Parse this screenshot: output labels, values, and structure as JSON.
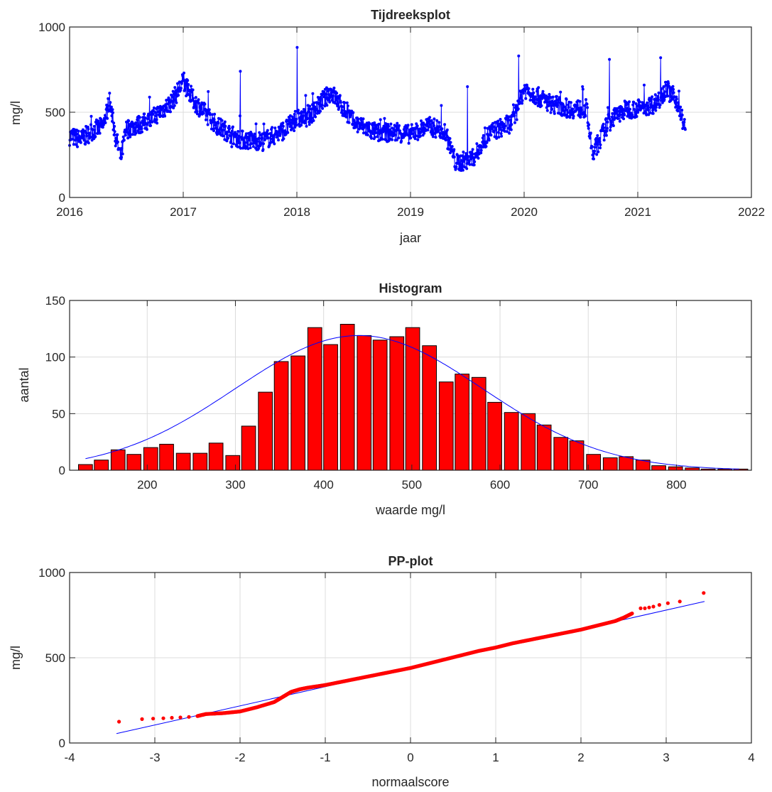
{
  "chart_data": [
    {
      "type": "line",
      "title": "Tijdreeksplot",
      "xlabel": "jaar",
      "ylabel": "mg/l",
      "xlim": [
        2016,
        2022
      ],
      "ylim": [
        0,
        1000
      ],
      "xticks": [
        "2016",
        "2017",
        "2018",
        "2019",
        "2020",
        "2021",
        "2022"
      ],
      "yticks": [
        "0",
        "500",
        "1000"
      ],
      "grid": true,
      "line_color": "#0000ff",
      "x": [
        2016.0,
        2016.1,
        2016.2,
        2016.3,
        2016.35,
        2016.4,
        2016.45,
        2016.5,
        2016.7,
        2016.9,
        2017.0,
        2017.1,
        2017.3,
        2017.5,
        2017.7,
        2017.9,
        2018.0,
        2018.1,
        2018.3,
        2018.5,
        2018.7,
        2018.9,
        2019.0,
        2019.15,
        2019.3,
        2019.4,
        2019.55,
        2019.7,
        2019.9,
        2020.0,
        2020.2,
        2020.4,
        2020.55,
        2020.6,
        2020.75,
        2020.9,
        2021.0,
        2021.15,
        2021.25,
        2021.35,
        2021.42
      ],
      "y": [
        360,
        340,
        390,
        420,
        570,
        380,
        230,
        400,
        450,
        560,
        680,
        560,
        420,
        340,
        330,
        400,
        460,
        470,
        620,
        440,
        380,
        380,
        370,
        420,
        390,
        200,
        230,
        380,
        440,
        640,
        560,
        520,
        520,
        250,
        450,
        520,
        520,
        550,
        640,
        560,
        390
      ],
      "spike_x": [
        2017.5,
        2018.0,
        2019.5,
        2019.95,
        2020.75,
        2021.2
      ],
      "spike_y": [
        740,
        880,
        650,
        830,
        810,
        820
      ]
    },
    {
      "type": "bar",
      "title": "Histogram",
      "xlabel": "waarde mg/l",
      "ylabel": "aantal",
      "xlim": [
        112,
        885
      ],
      "ylim": [
        0,
        150
      ],
      "xticks": [
        "200",
        "300",
        "400",
        "500",
        "600",
        "700",
        "800"
      ],
      "yticks": [
        "0",
        "50",
        "100",
        "150"
      ],
      "grid": true,
      "bar_color": "#ff0000",
      "curve_color": "#0000ff",
      "bin_centers": [
        130,
        148,
        167,
        185,
        204,
        222,
        241,
        260,
        278,
        297,
        315,
        334,
        352,
        371,
        390,
        408,
        427,
        446,
        464,
        483,
        501,
        520,
        539,
        557,
        576,
        594,
        613,
        632,
        650,
        669,
        687,
        706,
        725,
        743,
        762,
        780,
        799,
        818,
        836,
        855,
        873
      ],
      "values": [
        5,
        9,
        18,
        14,
        20,
        23,
        15,
        15,
        24,
        13,
        39,
        69,
        96,
        101,
        126,
        111,
        129,
        119,
        115,
        118,
        126,
        110,
        78,
        85,
        82,
        60,
        51,
        50,
        40,
        29,
        26,
        14,
        11,
        12,
        9,
        4,
        3,
        2,
        1,
        1,
        1
      ],
      "fit_mean": 440,
      "fit_sd": 140,
      "fit_peak": 119
    },
    {
      "type": "scatter",
      "title": "PP-plot",
      "xlabel": "normaalscore",
      "ylabel": "mg/l",
      "xlim": [
        -4,
        4
      ],
      "ylim": [
        0,
        1000
      ],
      "xticks": [
        "-4",
        "-3",
        "-2",
        "-1",
        "0",
        "1",
        "2",
        "3",
        "4"
      ],
      "yticks": [
        "0",
        "500",
        "1000"
      ],
      "grid": true,
      "point_color": "#ff0000",
      "line_color": "#0000ff",
      "fit_line_x": [
        -3.45,
        3.45
      ],
      "fit_line_y": [
        55,
        830
      ],
      "x": [
        -3.42,
        -3.15,
        -3.02,
        -2.9,
        -2.8,
        -2.7,
        -2.6,
        -2.5,
        -2.4,
        -2.2,
        -2.0,
        -1.8,
        -1.6,
        -1.5,
        -1.45,
        -1.4,
        -1.3,
        -1.2,
        -1.0,
        -0.8,
        -0.6,
        -0.4,
        -0.2,
        0.0,
        0.2,
        0.4,
        0.6,
        0.8,
        1.0,
        1.2,
        1.4,
        1.6,
        1.8,
        2.0,
        2.2,
        2.4,
        2.5,
        2.6,
        2.7,
        2.75,
        2.8,
        2.85,
        2.92,
        3.02,
        3.16,
        3.44
      ],
      "y": [
        125,
        140,
        143,
        145,
        148,
        150,
        153,
        158,
        170,
        175,
        185,
        210,
        240,
        270,
        285,
        300,
        315,
        325,
        340,
        360,
        380,
        400,
        420,
        440,
        465,
        490,
        515,
        540,
        560,
        585,
        605,
        625,
        645,
        665,
        690,
        715,
        735,
        760,
        790,
        790,
        795,
        800,
        810,
        820,
        830,
        880
      ]
    }
  ]
}
